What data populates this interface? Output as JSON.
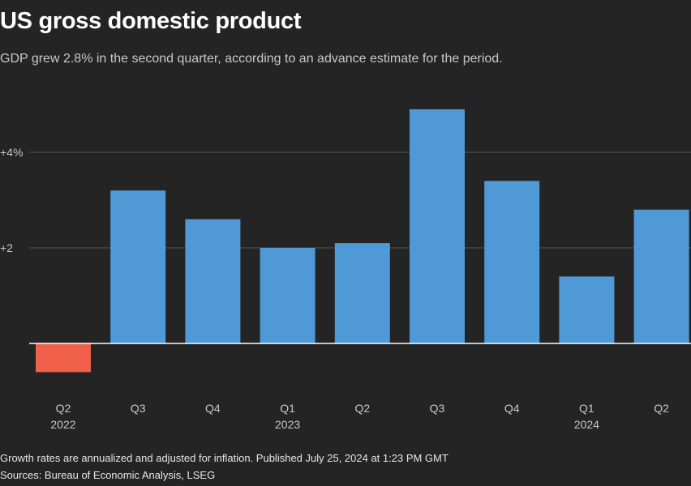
{
  "header": {
    "title": "US gross domestic product",
    "subtitle": "GDP grew 2.8% in the second quarter, according to an advance estimate for the period."
  },
  "footer": {
    "note": "Growth rates are annualized and adjusted for inflation. Published July 25, 2024 at 1:23 PM GMT",
    "sources": "Sources: Bureau of Economic Analysis, LSEG"
  },
  "chart_data": {
    "type": "bar",
    "title": "US gross domestic product",
    "subtitle": "GDP grew 2.8% in the second quarter, according to an advance estimate for the period.",
    "categories": [
      "Q2",
      "Q3",
      "Q4",
      "Q1",
      "Q2",
      "Q3",
      "Q4",
      "Q1",
      "Q2"
    ],
    "year_labels": [
      "2022",
      "",
      "",
      "2023",
      "",
      "",
      "",
      "2024",
      ""
    ],
    "values": [
      -0.6,
      3.2,
      2.6,
      2.0,
      2.1,
      4.9,
      3.4,
      1.4,
      2.8
    ],
    "ylim": [
      -1.2,
      5.2
    ],
    "yticks": [
      {
        "value": 2,
        "label": "+2"
      },
      {
        "value": 4,
        "label": "+4%"
      }
    ],
    "colors": {
      "positive": "#4f9ad6",
      "negative": "#f0604a",
      "grid": "#555555",
      "axis": "#ffffff",
      "tick_text": "#c8c8c8"
    },
    "xlabel": "",
    "ylabel": ""
  }
}
